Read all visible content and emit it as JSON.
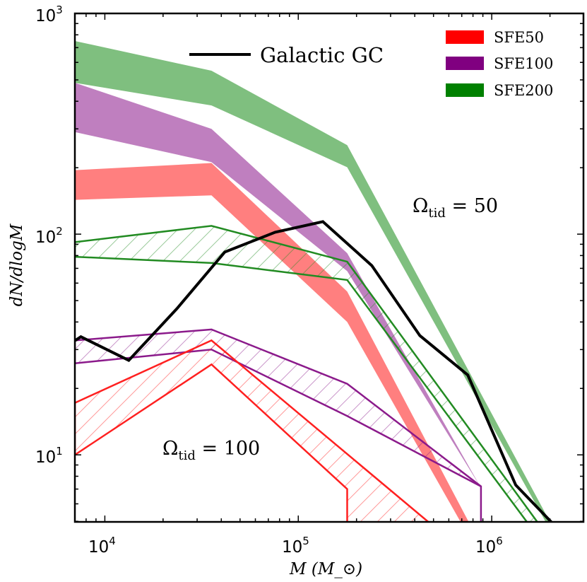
{
  "chart_data": {
    "type": "area",
    "title": "",
    "xlabel": "M (M_⊙)",
    "ylabel": "dN/dlogM",
    "xscale": "log",
    "yscale": "log",
    "xlim": [
      7000,
      2980000
    ],
    "ylim": [
      4.97,
      1000
    ],
    "x_ticks": [
      {
        "value": 10000,
        "base": "10",
        "exp": "4"
      },
      {
        "value": 100000,
        "base": "10",
        "exp": "5"
      },
      {
        "value": 1000000,
        "base": "10",
        "exp": "6"
      }
    ],
    "y_ticks": [
      {
        "value": 10,
        "base": "10",
        "exp": "1"
      },
      {
        "value": 100,
        "base": "10",
        "exp": "2"
      },
      {
        "value": 1000,
        "base": "10",
        "exp": "3"
      }
    ],
    "grid": false,
    "legend": {
      "placement": "top-right",
      "entries": [
        {
          "label": "SFE50",
          "color": "#ff0000"
        },
        {
          "label": "SFE100",
          "color": "#800080"
        },
        {
          "label": "SFE200",
          "color": "#008000"
        }
      ]
    },
    "line_legend": {
      "label": "Galactic GC",
      "color": "#000000",
      "placement": "top-center"
    },
    "annotations": [
      {
        "text": "Ω",
        "sub": "tid",
        "rest": " = 50",
        "name": "omega-50"
      },
      {
        "text": "Ω",
        "sub": "tid",
        "rest": " = 100",
        "name": "omega-100"
      }
    ],
    "bands_filled": [
      {
        "name": "SFE200",
        "omega_tid": 50,
        "color": "#008000",
        "alpha": 0.5,
        "upper": [
          [
            7000,
            750
          ],
          [
            35600,
            550
          ],
          [
            179000,
            253
          ],
          [
            2000000,
            4.97
          ]
        ],
        "lower": [
          [
            7000,
            485
          ],
          [
            35600,
            383
          ],
          [
            179000,
            201
          ],
          [
            1900000,
            4.97
          ]
        ]
      },
      {
        "name": "SFE100",
        "omega_tid": 50,
        "color": "#800080",
        "alpha": 0.5,
        "upper": [
          [
            7000,
            485
          ],
          [
            35600,
            300
          ],
          [
            179000,
            82
          ],
          [
            880000,
            7.1
          ]
        ],
        "lower": [
          [
            7000,
            290
          ],
          [
            35600,
            212
          ],
          [
            179000,
            68
          ],
          [
            880000,
            7.1
          ]
        ]
      },
      {
        "name": "SFE50",
        "omega_tid": 50,
        "color": "#ff0000",
        "alpha": 0.5,
        "upper": [
          [
            7000,
            195
          ],
          [
            35600,
            210
          ],
          [
            179000,
            55
          ],
          [
            760000,
            4.97
          ]
        ],
        "lower": [
          [
            7000,
            143
          ],
          [
            35600,
            150
          ],
          [
            179000,
            40
          ],
          [
            690000,
            4.97
          ]
        ]
      }
    ],
    "bands_hatched": [
      {
        "name": "SFE200",
        "omega_tid": 100,
        "color": "#228b22",
        "upper": [
          [
            7000,
            92
          ],
          [
            35600,
            109
          ],
          [
            179000,
            75
          ],
          [
            1720000,
            4.97
          ]
        ],
        "lower": [
          [
            7000,
            79
          ],
          [
            35600,
            74
          ],
          [
            179000,
            62
          ],
          [
            1520000,
            4.97
          ]
        ]
      },
      {
        "name": "SFE100",
        "omega_tid": 100,
        "color": "#8b1a8b",
        "upper": [
          [
            7000,
            33
          ],
          [
            35600,
            37
          ],
          [
            179000,
            21
          ],
          [
            880000,
            7.2
          ]
        ],
        "lower": [
          [
            7000,
            26
          ],
          [
            35600,
            30
          ],
          [
            179000,
            15
          ],
          [
            880000,
            7.2
          ]
        ],
        "right_drop_to": 4.97
      },
      {
        "name": "SFE50",
        "omega_tid": 100,
        "color": "#ff2020",
        "upper": [
          [
            7000,
            17.2
          ],
          [
            35600,
            33
          ],
          [
            470000,
            4.97
          ]
        ],
        "lower": [
          [
            7000,
            10
          ],
          [
            35600,
            25.7
          ],
          [
            179000,
            7.0
          ]
        ],
        "right_drop_to": 4.97
      }
    ],
    "series": [
      {
        "name": "Galactic GC",
        "color": "#000000",
        "x": [
          7030,
          7520,
          13300,
          23600,
          41700,
          75900,
          134000,
          240000,
          425000,
          752000,
          1330000,
          2030000
        ],
        "y": [
          33,
          34.3,
          26.8,
          46,
          83,
          102,
          114,
          72,
          34.7,
          23,
          7.3,
          4.97
        ]
      }
    ]
  }
}
